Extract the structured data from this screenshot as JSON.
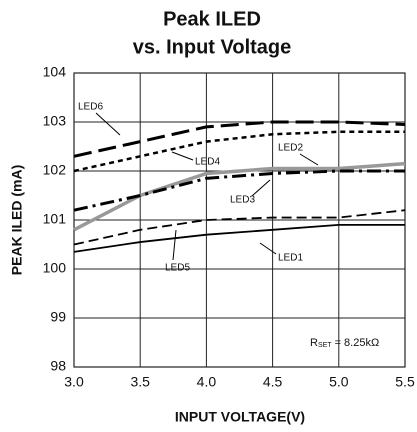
{
  "chart_data": {
    "type": "line",
    "title": "Peak ILED",
    "subtitle": "vs. Input Voltage",
    "xlabel": "INPUT VOLTAGE(V)",
    "ylabel": "PEAK ILED (mA)",
    "annotation": {
      "symbol": "R",
      "subscript": "SET",
      "text": "= 8.25kΩ"
    },
    "x": [
      3.0,
      3.5,
      4.0,
      4.5,
      5.0,
      5.5
    ],
    "series": [
      {
        "name": "LED6",
        "color": "#000000",
        "style": "long-dash",
        "values": [
          102.3,
          102.6,
          102.9,
          103.0,
          103.0,
          102.95
        ]
      },
      {
        "name": "LED4",
        "color": "#000000",
        "style": "short-dash",
        "values": [
          102.0,
          102.3,
          102.6,
          102.75,
          102.8,
          102.8
        ]
      },
      {
        "name": "LED2",
        "color": "#999999",
        "style": "solid-thick",
        "values": [
          100.8,
          101.5,
          101.95,
          102.05,
          102.05,
          102.15
        ]
      },
      {
        "name": "LED3",
        "color": "#000000",
        "style": "dash-dot",
        "values": [
          101.2,
          101.5,
          101.85,
          101.95,
          102.0,
          102.0
        ]
      },
      {
        "name": "LED5",
        "color": "#000000",
        "style": "dash",
        "values": [
          100.5,
          100.8,
          101.0,
          101.05,
          101.05,
          101.2
        ]
      },
      {
        "name": "LED1",
        "color": "#000000",
        "style": "solid",
        "values": [
          100.35,
          100.55,
          100.7,
          100.8,
          100.9,
          100.9
        ]
      }
    ],
    "xlim": [
      3.0,
      5.5
    ],
    "xticks": [
      {
        "value": 3.0,
        "label": "3.0"
      },
      3.5,
      {
        "value": 4.0,
        "label": "4.0"
      },
      4.5,
      {
        "value": 5.0,
        "label": "5.0"
      },
      5.5
    ],
    "ylim": [
      98,
      104
    ],
    "yticks": [
      98,
      99,
      100,
      101,
      102,
      103,
      104
    ],
    "grid": true
  }
}
